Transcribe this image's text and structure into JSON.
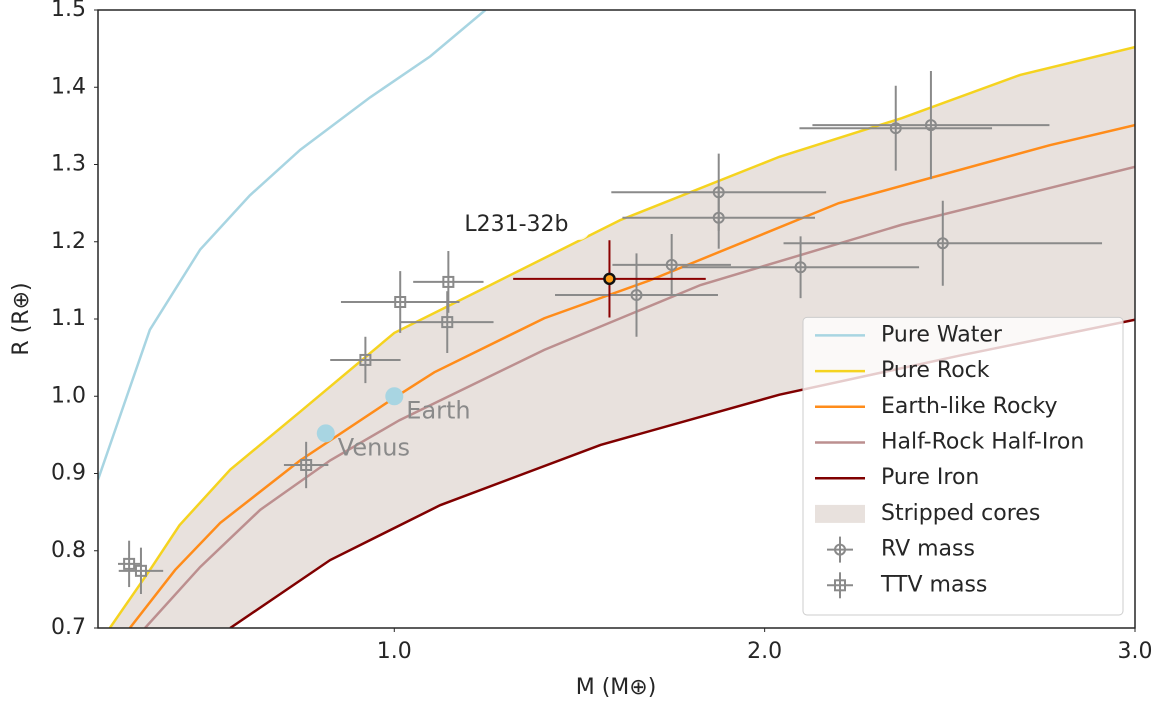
{
  "chart_data": {
    "type": "line",
    "xlabel": "M (M⊕)",
    "ylabel": "R (R⊕)",
    "xlim": [
      0.2,
      3.0
    ],
    "ylim": [
      0.7,
      1.5
    ],
    "xticks": [
      {
        "value": 1,
        "label": "1.0"
      },
      {
        "value": 2,
        "label": "2.0"
      },
      {
        "value": 3,
        "label": "3.0"
      }
    ],
    "yticks": [
      0.7,
      0.8,
      0.9,
      {
        "value": 1,
        "label": "1.0"
      },
      1.1,
      1.2,
      1.3,
      1.4,
      1.5
    ],
    "legend": "lower right",
    "series": [
      {
        "name": "Pure Water",
        "color": "#a8d5e2",
        "x": [
          0.2,
          0.34,
          0.476,
          0.61,
          0.746,
          0.935,
          1.097,
          1.246
        ],
        "values": [
          0.892,
          1.086,
          1.19,
          1.26,
          1.319,
          1.387,
          1.44,
          1.5
        ]
      },
      {
        "name": "Pure Rock",
        "color": "#f5d31f",
        "x": [
          0.232,
          0.34,
          0.42,
          0.557,
          0.746,
          1.0,
          1.26,
          1.61,
          2.04,
          2.37,
          2.69,
          3.0
        ],
        "values": [
          0.7,
          0.775,
          0.833,
          0.905,
          0.98,
          1.082,
          1.144,
          1.228,
          1.31,
          1.36,
          1.416,
          1.452
        ]
      },
      {
        "name": "Earth-like Rocky",
        "color": "#ff8c1a",
        "x": [
          0.286,
          0.408,
          0.53,
          0.746,
          1.0,
          1.108,
          1.405,
          1.69,
          2.2,
          2.77,
          3.0
        ],
        "values": [
          0.7,
          0.775,
          0.836,
          0.917,
          0.998,
          1.031,
          1.101,
          1.15,
          1.25,
          1.325,
          1.351
        ]
      },
      {
        "name": "Half-Rock Half-Iron",
        "color": "#bc8f8f",
        "x": [
          0.327,
          0.476,
          0.638,
          0.827,
          1.014,
          1.405,
          1.827,
          2.37,
          3.0
        ],
        "values": [
          0.7,
          0.779,
          0.853,
          0.917,
          0.969,
          1.06,
          1.144,
          1.222,
          1.297
        ]
      },
      {
        "name": "Pure Iron",
        "color": "#800000",
        "x": [
          0.557,
          0.827,
          1.124,
          1.557,
          2.04,
          2.53,
          3.0
        ],
        "values": [
          0.7,
          0.788,
          0.859,
          0.937,
          1.002,
          1.053,
          1.099
        ]
      }
    ],
    "band": {
      "name": "Stripped cores",
      "color": "#e8e1dd"
    },
    "points": [
      {
        "name": "RV mass",
        "marker": "circle",
        "color": "#8a8a8a",
        "x": [
          1.654,
          1.749,
          1.876,
          1.876,
          2.097,
          2.354,
          2.449,
          2.481
        ],
        "values": [
          1.131,
          1.17,
          1.264,
          1.231,
          1.167,
          1.347,
          1.351,
          1.198
        ],
        "xerr": [
          0.22,
          0.16,
          0.29,
          0.26,
          0.32,
          0.26,
          0.32,
          0.43
        ],
        "yerr": [
          0.054,
          0.04,
          0.05,
          0.04,
          0.04,
          0.055,
          0.07,
          0.055
        ]
      },
      {
        "name": "TTV mass",
        "marker": "square",
        "color": "#8a8a8a",
        "x": [
          0.284,
          0.316,
          0.762,
          0.922,
          1.016,
          1.143,
          1.146
        ],
        "values": [
          0.783,
          0.774,
          0.911,
          1.047,
          1.122,
          1.096,
          1.148
        ],
        "xerr": [
          0.03,
          0.06,
          0.06,
          0.095,
          0.16,
          0.125,
          0.095
        ],
        "yerr": [
          0.03,
          0.03,
          0.03,
          0.03,
          0.04,
          0.04,
          0.04
        ]
      }
    ],
    "target": {
      "label": "L231-32b",
      "color": "#8b0000",
      "x": 1.581,
      "value": 1.152,
      "xerr": 0.26,
      "yerr": 0.05
    },
    "planet_color": "#a8d5e2",
    "planets": [
      {
        "label": "Earth",
        "x": 1.0,
        "value": 1.0
      },
      {
        "label": "Venus",
        "x": 0.815,
        "value": 0.952
      }
    ]
  }
}
